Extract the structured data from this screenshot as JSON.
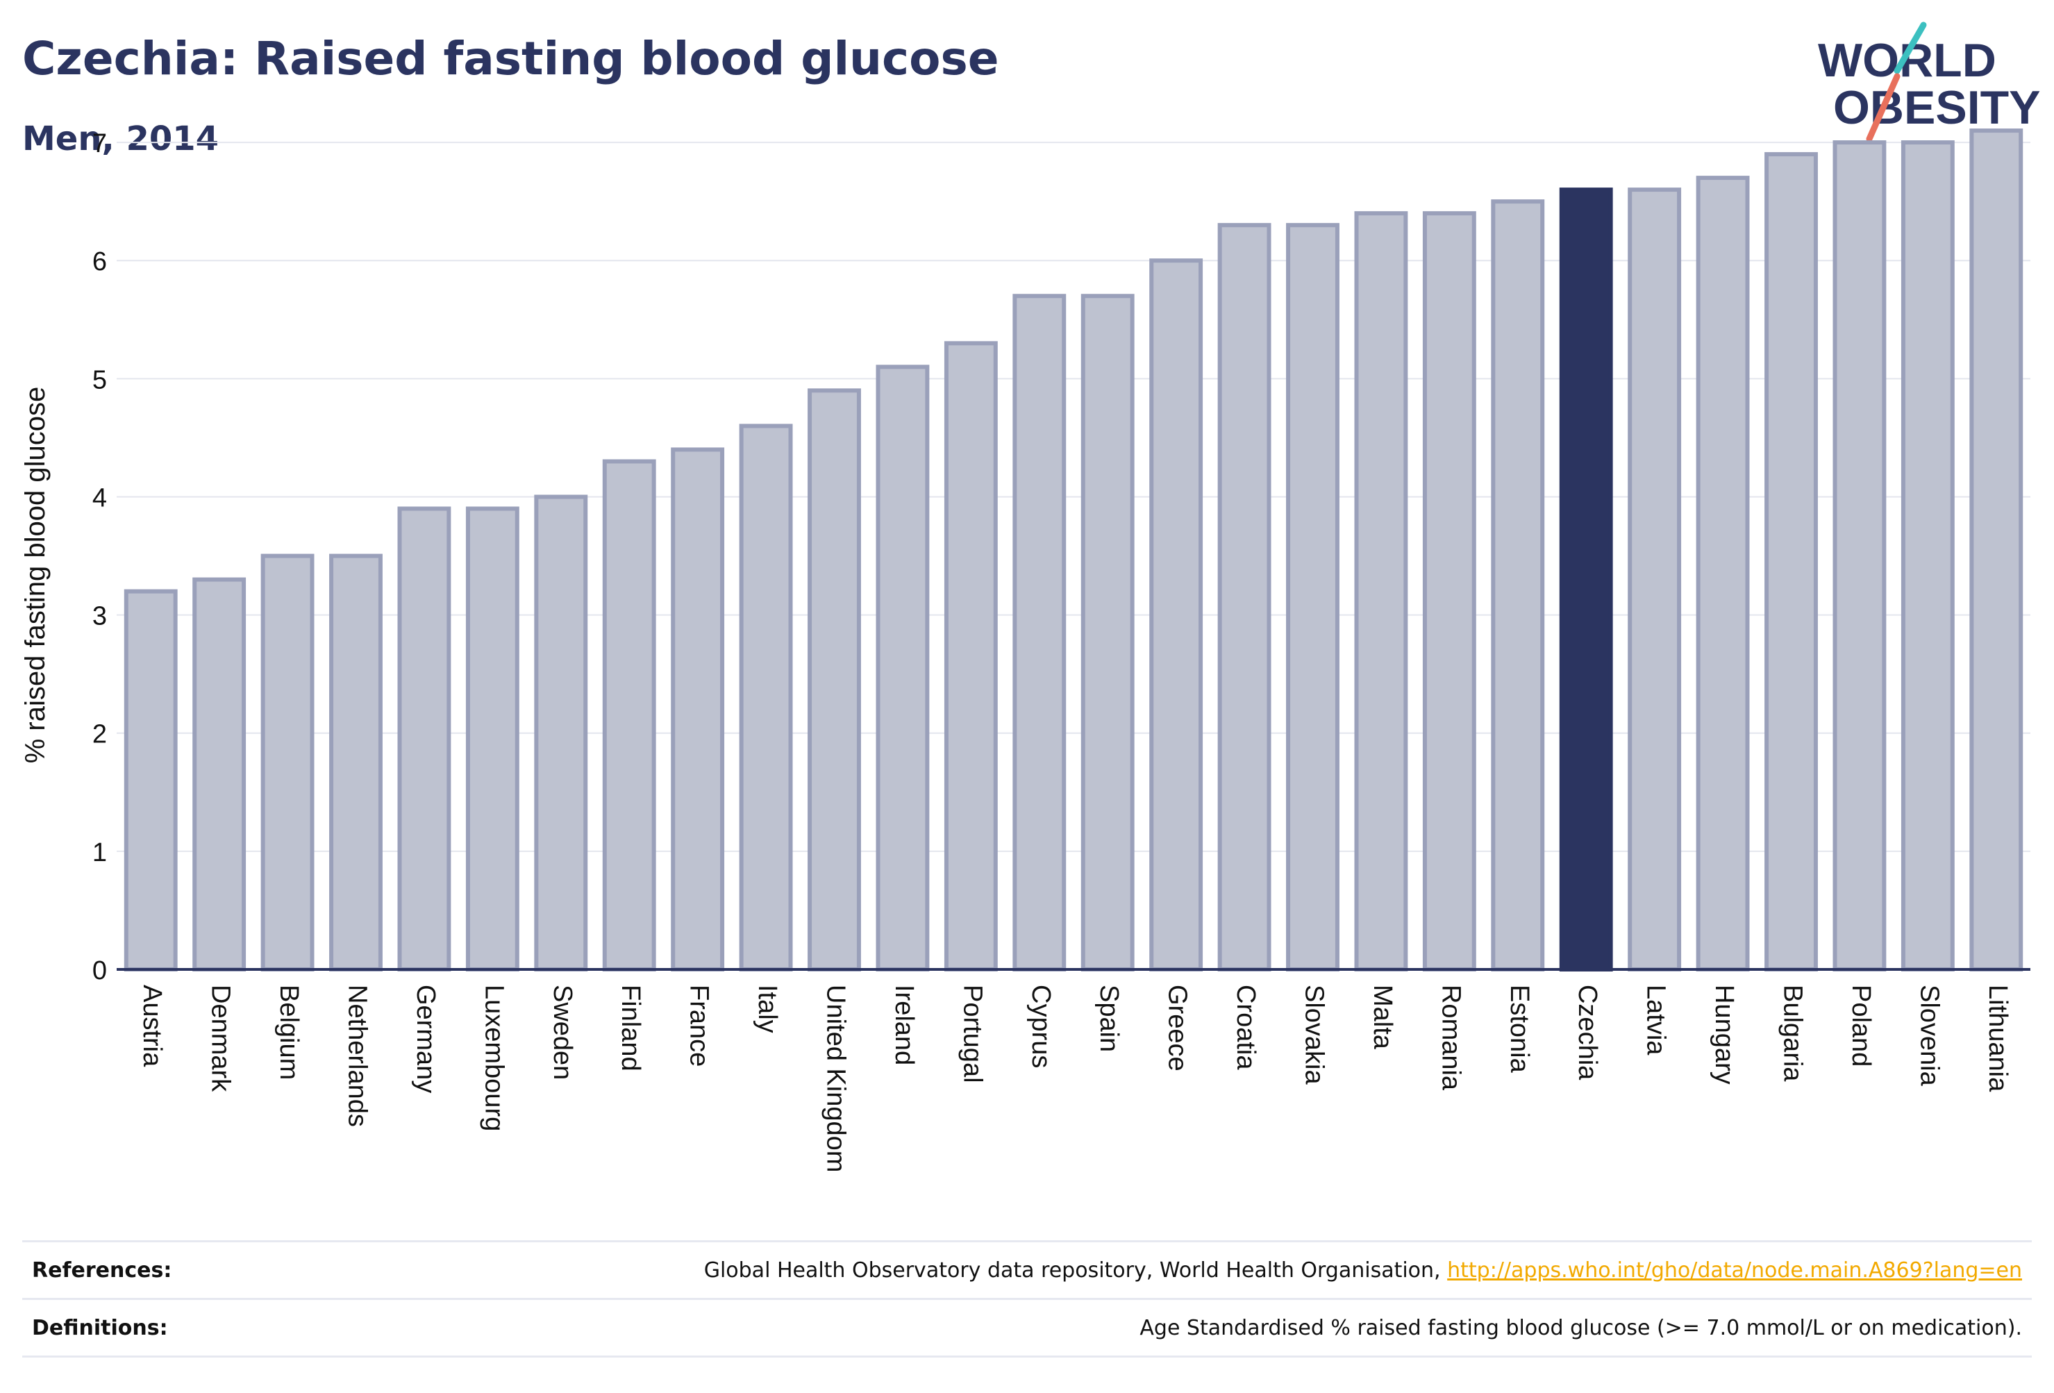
{
  "header": {
    "title": "Czechia: Raised fasting blood glucose",
    "subtitle": "Men, 2014"
  },
  "logo": {
    "line1": "WORLD",
    "line2": "OBESITY"
  },
  "chart_data": {
    "type": "bar",
    "ylabel": "% raised fasting blood glucose",
    "xlabel": "",
    "ylim": [
      0,
      7.5
    ],
    "yticks": [
      0,
      1,
      2,
      3,
      4,
      5,
      6,
      7
    ],
    "grid": true,
    "highlight": "Czechia",
    "colors": {
      "bar": "#bec2d0",
      "bar_border": "#9aa0ba",
      "highlight": "#2b3460"
    },
    "categories": [
      "Austria",
      "Denmark",
      "Belgium",
      "Netherlands",
      "Germany",
      "Luxembourg",
      "Sweden",
      "Finland",
      "France",
      "Italy",
      "United Kingdom",
      "Ireland",
      "Portugal",
      "Cyprus",
      "Spain",
      "Greece",
      "Croatia",
      "Slovakia",
      "Malta",
      "Romania",
      "Estonia",
      "Czechia",
      "Latvia",
      "Hungary",
      "Bulgaria",
      "Poland",
      "Slovenia",
      "Lithuania"
    ],
    "values": [
      3.2,
      3.3,
      3.5,
      3.5,
      3.9,
      3.9,
      4.0,
      4.3,
      4.4,
      4.6,
      4.9,
      5.1,
      5.3,
      5.7,
      5.7,
      6.0,
      6.3,
      6.3,
      6.4,
      6.4,
      6.5,
      6.6,
      6.6,
      6.7,
      6.9,
      7.0,
      7.0,
      7.1
    ]
  },
  "footer": {
    "references_label": "References:",
    "references_text": "Global Health Observatory data repository, World Health Organisation,",
    "references_link": "http://apps.who.int/gho/data/node.main.A869?lang=en",
    "definitions_label": "Definitions:",
    "definitions_text": "Age Standardised % raised fasting blood glucose (>= 7.0 mmol/L or on medication)."
  }
}
